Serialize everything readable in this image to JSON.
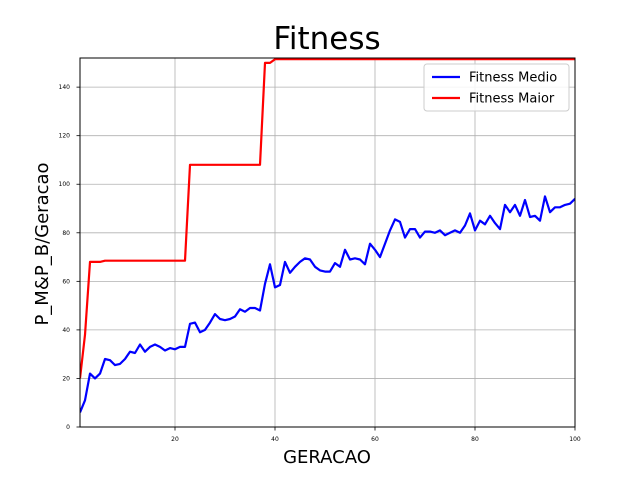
{
  "chart_data": {
    "type": "line",
    "title": "Fitness",
    "xlabel": "GERACAO",
    "ylabel": "P_M&P_B/Geracao",
    "xlim": [
      1,
      100
    ],
    "ylim": [
      0,
      152
    ],
    "xticks": [
      20,
      40,
      60,
      80,
      100
    ],
    "yticks": [
      0,
      20,
      40,
      60,
      80,
      100,
      120,
      140
    ],
    "grid": true,
    "legend_position": "top-right",
    "series": [
      {
        "name": "Fitness Medio",
        "color": "#0000ff",
        "x": [
          1,
          2,
          3,
          4,
          5,
          6,
          7,
          8,
          9,
          10,
          11,
          12,
          13,
          14,
          15,
          16,
          17,
          18,
          19,
          20,
          21,
          22,
          23,
          24,
          25,
          26,
          27,
          28,
          29,
          30,
          31,
          32,
          33,
          34,
          35,
          36,
          37,
          38,
          39,
          40,
          41,
          42,
          43,
          44,
          45,
          46,
          47,
          48,
          49,
          50,
          51,
          52,
          53,
          54,
          55,
          56,
          57,
          58,
          59,
          60,
          61,
          62,
          63,
          64,
          65,
          66,
          67,
          68,
          69,
          70,
          71,
          72,
          73,
          74,
          75,
          76,
          77,
          78,
          79,
          80,
          81,
          82,
          83,
          84,
          85,
          86,
          87,
          88,
          89,
          90,
          91,
          92,
          93,
          94,
          95,
          96,
          97,
          98,
          99,
          100
        ],
        "values": [
          6,
          11,
          22,
          20,
          22,
          28,
          27.5,
          25.5,
          26,
          28,
          31,
          30.5,
          34,
          31,
          33,
          34,
          33,
          31.5,
          32.5,
          32,
          33,
          33,
          42.5,
          43,
          39,
          40,
          43,
          46.5,
          44.5,
          44,
          44.5,
          45.5,
          48.5,
          47.5,
          49,
          49,
          48,
          59,
          67,
          57.5,
          58.5,
          68,
          63.5,
          66,
          68,
          69.5,
          69,
          66,
          64.5,
          64,
          64,
          67.5,
          66,
          73,
          69,
          69.5,
          69,
          67,
          75.5,
          73,
          70,
          75.5,
          81,
          85.5,
          84.5,
          78,
          81.5,
          81.5,
          78,
          80.5,
          80.5,
          80,
          81,
          79,
          80,
          81,
          80,
          83,
          88,
          81,
          85,
          83.5,
          87,
          84,
          81.5,
          91.5,
          88.5,
          91.5,
          87,
          93.5,
          86.5,
          87,
          85,
          95,
          88.5,
          90.5,
          90.5,
          91.5,
          92,
          94
        ]
      },
      {
        "name": "Fitness Maior",
        "color": "#ff0000",
        "x": [
          1,
          2,
          3,
          4,
          5,
          6,
          7,
          8,
          9,
          10,
          11,
          12,
          13,
          14,
          15,
          16,
          17,
          18,
          19,
          20,
          21,
          22,
          23,
          24,
          25,
          26,
          27,
          28,
          29,
          30,
          31,
          32,
          33,
          34,
          35,
          36,
          37,
          38,
          39,
          40,
          41,
          42,
          43,
          44,
          45,
          46,
          47,
          48,
          49,
          50,
          51,
          52,
          53,
          54,
          55,
          56,
          57,
          58,
          59,
          60,
          61,
          62,
          63,
          64,
          65,
          66,
          67,
          68,
          69,
          70,
          71,
          72,
          73,
          74,
          75,
          76,
          77,
          78,
          79,
          80,
          81,
          82,
          83,
          84,
          85,
          86,
          87,
          88,
          89,
          90,
          91,
          92,
          93,
          94,
          95,
          96,
          97,
          98,
          99,
          100
        ],
        "values": [
          20,
          38,
          68,
          68,
          68,
          68.5,
          68.5,
          68.5,
          68.5,
          68.5,
          68.5,
          68.5,
          68.5,
          68.5,
          68.5,
          68.5,
          68.5,
          68.5,
          68.5,
          68.5,
          68.5,
          68.5,
          108,
          108,
          108,
          108,
          108,
          108,
          108,
          108,
          108,
          108,
          108,
          108,
          108,
          108,
          108,
          150,
          150,
          151.5,
          151.5,
          151.5,
          151.5,
          151.5,
          151.5,
          151.5,
          151.5,
          151.5,
          151.5,
          151.5,
          151.5,
          151.5,
          151.5,
          151.5,
          151.5,
          151.5,
          151.5,
          151.5,
          151.5,
          151.5,
          151.5,
          151.5,
          151.5,
          151.5,
          151.5,
          151.5,
          151.5,
          151.5,
          151.5,
          151.5,
          151.5,
          151.5,
          151.5,
          151.5,
          151.5,
          151.5,
          151.5,
          151.5,
          151.5,
          151.5,
          151.5,
          151.5,
          151.5,
          151.5,
          151.5,
          151.5,
          151.5,
          151.5,
          151.5,
          151.5,
          151.5,
          151.5,
          151.5,
          151.5,
          151.5,
          151.5,
          151.5,
          151.5,
          151.5,
          151.5
        ]
      }
    ]
  }
}
